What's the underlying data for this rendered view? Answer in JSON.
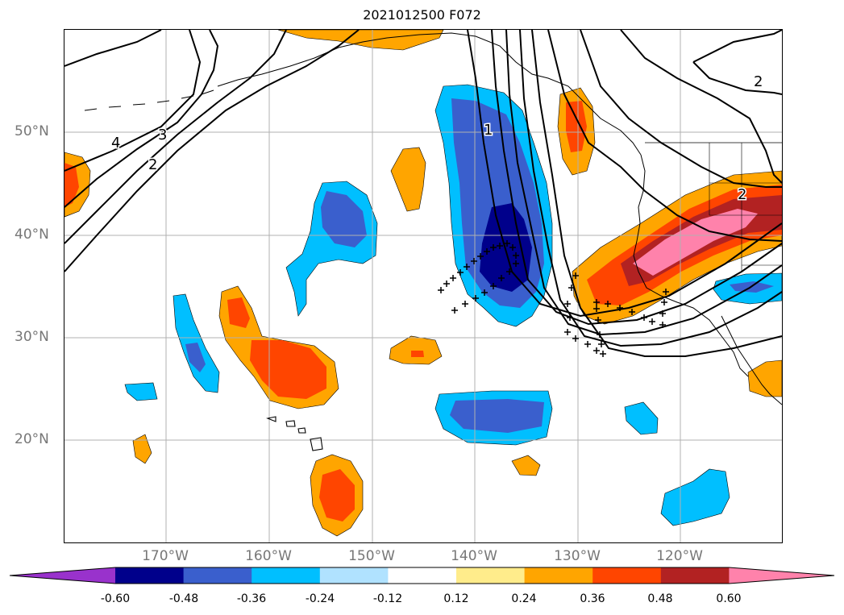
{
  "title": "2021012500 F072",
  "lon_ticks": [
    "170°W",
    "160°W",
    "150°W",
    "140°W",
    "130°W",
    "120°W"
  ],
  "lat_ticks": [
    "50°N",
    "40°N",
    "30°N",
    "20°N"
  ],
  "contour_labels": [
    "4",
    "3",
    "2",
    "1",
    "2",
    "2"
  ],
  "colorbar": {
    "labels": [
      "-0.60",
      "-0.48",
      "-0.36",
      "-0.24",
      "-0.12",
      "0.12",
      "0.24",
      "0.36",
      "0.48",
      "0.60"
    ],
    "colors": [
      "#9932cc",
      "#00008b",
      "#3a5fcd",
      "#00bfff",
      "#b0e2ff",
      "#ffffff",
      "#ffec8b",
      "#ffa500",
      "#ff4500",
      "#b22222",
      "#ff82ab"
    ]
  },
  "colors": {
    "grid": "#b0b0b0",
    "coast": "#000000",
    "contour": "#000000"
  }
}
